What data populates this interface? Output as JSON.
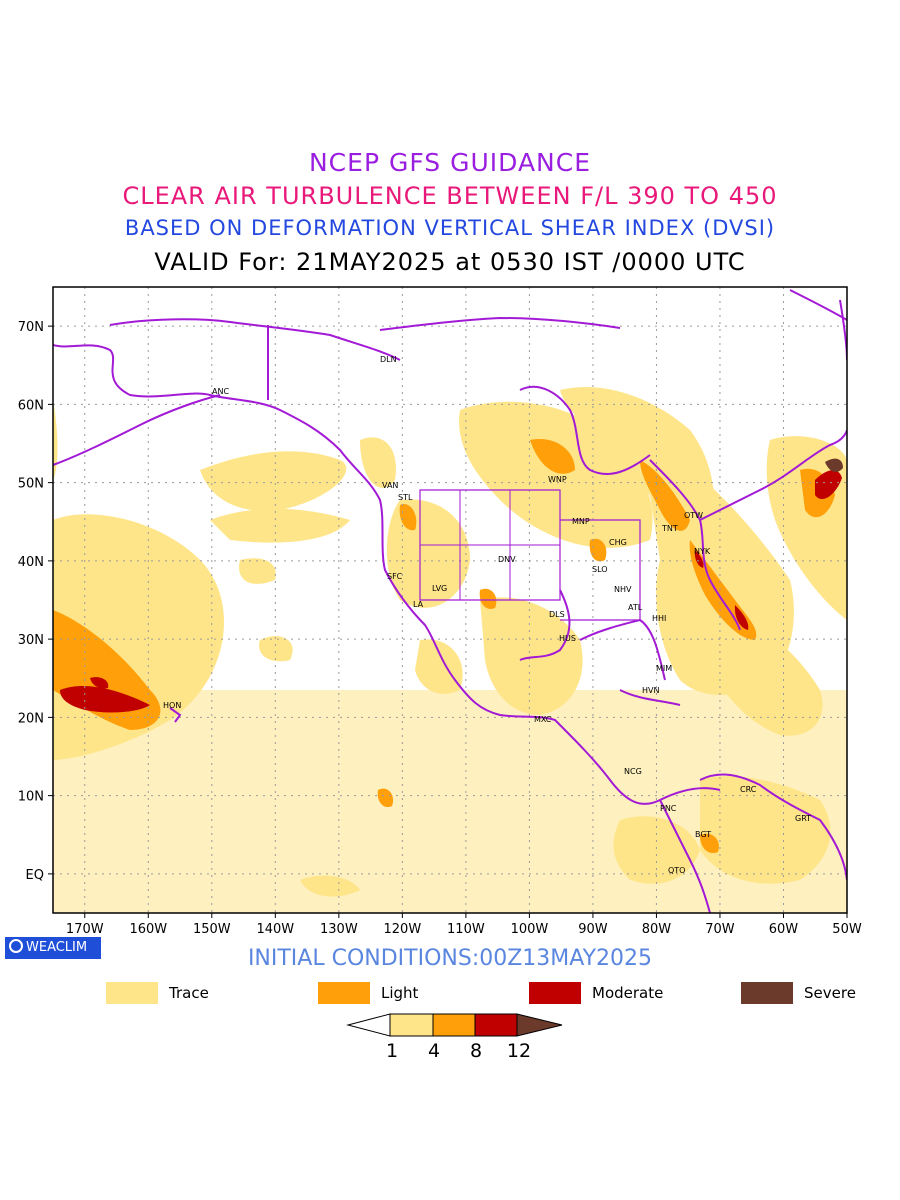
{
  "titles": {
    "line1": "NCEP GFS GUIDANCE",
    "line2": "CLEAR AIR TURBULENCE BETWEEN F/L 390 TO 450",
    "line3": "BASED ON DEFORMATION VERTICAL SHEAR INDEX (DVSI)",
    "line4": "VALID For: 21MAY2025 at 0530 IST /0000 UTC"
  },
  "colors": {
    "line1": "#9a1ee0",
    "line2": "#e8197a",
    "line3": "#2348e0",
    "trace": "#ffe58a",
    "light": "#ff9f0a",
    "moderate": "#c00000",
    "severe": "#6b3a2a",
    "coast": "#a31ad6",
    "grid": "#9a9a9a"
  },
  "lat_labels": [
    "70N",
    "60N",
    "50N",
    "40N",
    "30N",
    "20N",
    "10N",
    "EQ"
  ],
  "lon_labels": [
    "170W",
    "160W",
    "150W",
    "140W",
    "130W",
    "120W",
    "110W",
    "100W",
    "90W",
    "80W",
    "70W",
    "60W",
    "50W"
  ],
  "stations": [
    "ANC",
    "DLN",
    "VAN",
    "STL",
    "WNP",
    "MNP",
    "OTW",
    "TNT",
    "CHG",
    "NYK",
    "SLO",
    "DNV",
    "LVG",
    "SFC",
    "LA",
    "NHV",
    "ATL",
    "DLS",
    "HHI",
    "HUS",
    "MIM",
    "HVN",
    "HON",
    "MXC",
    "NCG",
    "PNC",
    "CRC",
    "BGT",
    "GRT",
    "QTO"
  ],
  "brand": "WEACLIM",
  "initial_conditions": "INITIAL CONDITIONS:00Z13MAY2025",
  "legend": [
    {
      "label": "Trace",
      "color": "#ffe58a"
    },
    {
      "label": "Light",
      "color": "#ff9f0a"
    },
    {
      "label": "Moderate",
      "color": "#c00000"
    },
    {
      "label": "Severe",
      "color": "#6b3a2a"
    }
  ],
  "colorbar": {
    "ticks": [
      "1",
      "4",
      "8",
      "12"
    ],
    "colors": [
      "#ffffff",
      "#ffe58a",
      "#ff9f0a",
      "#c00000",
      "#6b3a2a"
    ]
  }
}
